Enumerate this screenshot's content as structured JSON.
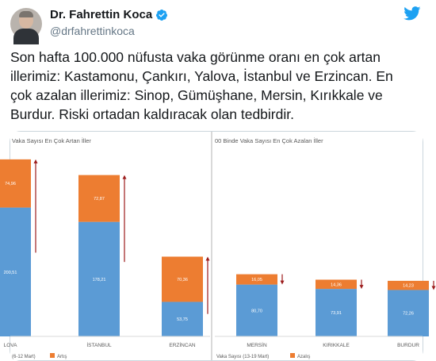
{
  "author": {
    "name": "Dr. Fahrettin Koca",
    "handle": "@drfahrettinkoca"
  },
  "tweet": {
    "lines": [
      "Son hafta 100.000 nüfusta vaka görünme oranı en çok artan",
      "illerimiz: Kastamonu, Çankırı, Yalova, İstanbul ve Erzincan. En",
      "çok azalan illerimiz: Sinop, Gümüşhane, Mersin, Kırıkkale ve",
      "Burdur. Riski ortadan kaldıracak olan tedbirdir."
    ]
  },
  "icons": {
    "verified": "verified-badge-icon",
    "brand": "twitter-bird-icon"
  },
  "colors": {
    "base": "#5b9bd5",
    "change": "#ed7d31",
    "arrow": "#9c1c1c",
    "twitter": "#1da1f2"
  },
  "chart_data": [
    {
      "type": "bar",
      "stacked": true,
      "title": "Vaka Sayısı En Çok Artan İller",
      "categories": [
        "LOVA",
        "İSTANBUL",
        "ERZİNCAN"
      ],
      "series": [
        {
          "name": "",
          "values": [
            200.51,
            178.21,
            53.75
          ],
          "labels": [
            "200,51",
            "178,21",
            "53,75"
          ]
        },
        {
          "name": "Artış",
          "values": [
            74.96,
            72.87,
            70.36
          ],
          "labels": [
            "74,96",
            "72,87",
            "70,36"
          ]
        }
      ],
      "trend": "up",
      "legend_text": "(6-12 Mart)"
    },
    {
      "type": "bar",
      "stacked": true,
      "title": "00 Binde Vaka Sayısı En Çok Azalan İller",
      "categories": [
        "MERSİN",
        "KIRIKKALE",
        "BURDUR"
      ],
      "series": [
        {
          "name": "Vaka Sayısı (13-19 Mart)",
          "values": [
            80.7,
            73.91,
            72.26
          ],
          "labels": [
            "80,70",
            "73,91",
            "72,26"
          ]
        },
        {
          "name": "Azalış",
          "values": [
            16.05,
            14.36,
            14.23
          ],
          "labels": [
            "16,05",
            "14,36",
            "14,23"
          ]
        }
      ],
      "trend": "down"
    }
  ]
}
